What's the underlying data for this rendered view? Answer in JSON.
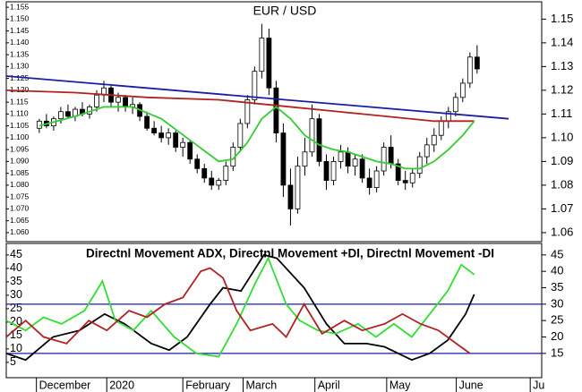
{
  "chart_data": [
    {
      "type": "candlestick",
      "title": "EUR / USD",
      "xlim": [
        -4.6,
        70
      ],
      "ylim": [
        1.0562,
        1.1573
      ],
      "yticks": [
        {
          "value": 1.06,
          "label": "1.060"
        },
        {
          "value": 1.065,
          "label": "1.065"
        },
        {
          "value": 1.07,
          "label": "1.070"
        },
        {
          "value": 1.075,
          "label": "1.075"
        },
        {
          "value": 1.08,
          "label": "1.080"
        },
        {
          "value": 1.085,
          "label": "1.085"
        },
        {
          "value": 1.09,
          "label": "1.090"
        },
        {
          "value": 1.095,
          "label": "1.095"
        },
        {
          "value": 1.1,
          "label": "1.100"
        },
        {
          "value": 1.105,
          "label": "1.105"
        },
        {
          "value": 1.11,
          "label": "1.110"
        },
        {
          "value": 1.115,
          "label": "1.115"
        },
        {
          "value": 1.12,
          "label": "1.120"
        },
        {
          "value": 1.125,
          "label": "1.125"
        },
        {
          "value": 1.13,
          "label": "1.130"
        },
        {
          "value": 1.135,
          "label": "1.135"
        },
        {
          "value": 1.14,
          "label": "1.140"
        },
        {
          "value": 1.145,
          "label": "1.145"
        },
        {
          "value": 1.15,
          "label": "1.150"
        },
        {
          "value": 1.155,
          "label": "1.155"
        }
      ],
      "y2lim": [
        1.0562,
        1.1573
      ],
      "y2ticks": [
        {
          "value": 1.06,
          "label": "1.06"
        },
        1.07,
        1.08,
        1.09,
        {
          "value": 1.1,
          "label": "1.10"
        },
        1.11,
        1.12,
        1.13,
        1.14,
        1.15
      ],
      "up_color": "#ffffff",
      "down_color": "#000000",
      "x": [
        0,
        1,
        2,
        3,
        4,
        5,
        6,
        7,
        8,
        9,
        10,
        11,
        12,
        13,
        14,
        15,
        16,
        17,
        18,
        19,
        20,
        21,
        22,
        23,
        24,
        25,
        26,
        27,
        28,
        29,
        30,
        31,
        32,
        33,
        34,
        35,
        36,
        37,
        38,
        39,
        40,
        41,
        42,
        43,
        44,
        45,
        46,
        47,
        48,
        49,
        50,
        51,
        52,
        53,
        54,
        55,
        56,
        57,
        58,
        59,
        60,
        61
      ],
      "open": [
        1.104,
        1.107,
        1.105,
        1.108,
        1.111,
        1.109,
        1.112,
        1.11,
        1.113,
        1.118,
        1.121,
        1.115,
        1.117,
        1.113,
        1.114,
        1.109,
        1.104,
        1.102,
        1.1,
        1.102,
        1.096,
        1.098,
        1.091,
        1.087,
        1.083,
        1.08,
        1.082,
        1.088,
        1.096,
        1.106,
        1.116,
        1.128,
        1.142,
        1.121,
        1.102,
        1.08,
        1.07,
        1.088,
        1.094,
        1.108,
        1.09,
        1.082,
        1.09,
        1.094,
        1.088,
        1.091,
        1.083,
        1.079,
        1.086,
        1.096,
        1.089,
        1.082,
        1.081,
        1.085,
        1.092,
        1.097,
        1.101,
        1.107,
        1.111,
        1.117,
        1.123,
        1.134
      ],
      "high": [
        1.108,
        1.11,
        1.109,
        1.113,
        1.114,
        1.113,
        1.115,
        1.114,
        1.12,
        1.124,
        1.122,
        1.119,
        1.118,
        1.117,
        1.115,
        1.111,
        1.107,
        1.105,
        1.104,
        1.103,
        1.1,
        1.099,
        1.093,
        1.089,
        1.086,
        1.083,
        1.09,
        1.098,
        1.108,
        1.118,
        1.13,
        1.148,
        1.146,
        1.124,
        1.106,
        1.087,
        1.092,
        1.1,
        1.114,
        1.11,
        1.093,
        1.092,
        1.097,
        1.096,
        1.093,
        1.093,
        1.087,
        1.088,
        1.098,
        1.101,
        1.091,
        1.086,
        1.087,
        1.094,
        1.1,
        1.104,
        1.109,
        1.113,
        1.119,
        1.125,
        1.136,
        1.139
      ],
      "low": [
        1.102,
        1.104,
        1.103,
        1.106,
        1.108,
        1.107,
        1.109,
        1.108,
        1.111,
        1.115,
        1.113,
        1.111,
        1.111,
        1.11,
        1.107,
        1.103,
        1.101,
        1.098,
        1.097,
        1.094,
        1.092,
        1.089,
        1.085,
        1.081,
        1.078,
        1.078,
        1.08,
        1.086,
        1.094,
        1.104,
        1.114,
        1.125,
        1.118,
        1.098,
        1.075,
        1.063,
        1.068,
        1.084,
        1.092,
        1.088,
        1.078,
        1.08,
        1.087,
        1.085,
        1.084,
        1.081,
        1.076,
        1.077,
        1.084,
        1.087,
        1.08,
        1.078,
        1.079,
        1.083,
        1.089,
        1.094,
        1.099,
        1.104,
        1.109,
        1.115,
        1.121,
        1.127
      ],
      "close": [
        1.107,
        1.105,
        1.108,
        1.111,
        1.109,
        1.112,
        1.11,
        1.113,
        1.118,
        1.121,
        1.115,
        1.117,
        1.113,
        1.114,
        1.109,
        1.104,
        1.102,
        1.1,
        1.102,
        1.096,
        1.098,
        1.091,
        1.087,
        1.083,
        1.08,
        1.082,
        1.088,
        1.096,
        1.106,
        1.116,
        1.128,
        1.142,
        1.121,
        1.102,
        1.08,
        1.07,
        1.088,
        1.094,
        1.108,
        1.09,
        1.082,
        1.09,
        1.094,
        1.088,
        1.091,
        1.083,
        1.079,
        1.086,
        1.096,
        1.089,
        1.082,
        1.081,
        1.085,
        1.092,
        1.097,
        1.101,
        1.107,
        1.111,
        1.117,
        1.123,
        1.134,
        1.129
      ],
      "series": [
        {
          "color": "#1c1ca8",
          "x": [
            -4.6,
            65.4
          ],
          "values": [
            1.126,
            1.108
          ]
        },
        {
          "color": "#b22222",
          "x": [
            -4.6,
            5,
            15,
            25,
            35,
            45,
            55,
            60.6
          ],
          "values": [
            1.12,
            1.119,
            1.117,
            1.116,
            1.113,
            1.11,
            1.107,
            1.107
          ]
        },
        {
          "color": "#33cc33",
          "x": [
            0,
            5,
            9,
            13,
            17,
            21,
            25,
            27,
            29,
            31,
            33,
            35,
            37,
            39,
            41,
            43,
            45,
            47,
            49,
            51,
            53,
            55,
            57,
            59,
            60.6
          ],
          "values": [
            1.105,
            1.109,
            1.113,
            1.113,
            1.108,
            1.099,
            1.09,
            1.091,
            1.098,
            1.108,
            1.113,
            1.108,
            1.101,
            1.097,
            1.095,
            1.094,
            1.092,
            1.09,
            1.089,
            1.087,
            1.087,
            1.09,
            1.095,
            1.101,
            1.107
          ]
        }
      ]
    },
    {
      "type": "line",
      "title": "Directnl Movement ADX, Directnl Movement +DI, Directnl Movement -DI",
      "xlim": [
        -4.6,
        70
      ],
      "xticks": [
        {
          "value": -0.4,
          "label": "December"
        },
        {
          "value": 9.4,
          "label": "2020"
        },
        {
          "value": 20,
          "label": "February"
        },
        {
          "value": 28.4,
          "label": "March"
        },
        {
          "value": 38.4,
          "label": "April"
        },
        {
          "value": 48.4,
          "label": "May"
        },
        {
          "value": 58.1,
          "label": "June"
        },
        {
          "value": 68.4,
          "label": "Ju"
        }
      ],
      "ylim": [
        -0.7,
        49.3
      ],
      "yticks": [
        5,
        10,
        15,
        20,
        25,
        30,
        35,
        40,
        45
      ],
      "y2lim": [
        7.6,
        48.5
      ],
      "y2ticks": [
        15,
        20,
        25,
        30,
        35,
        40,
        45
      ],
      "hlines": [
        30,
        15
      ],
      "hline_color": "#1c1ca8",
      "series": [
        {
          "color": "#000000",
          "axis": "y2",
          "x": [
            -4.6,
            -1.9,
            1.9,
            5.6,
            9.1,
            11.9,
            15.6,
            18.1,
            20.6,
            23.8,
            25.6,
            28.1,
            31.3,
            33.1,
            36.9,
            40,
            42.5,
            45.6,
            48.1,
            51.9,
            54.4,
            56.9,
            59.4,
            60.6
          ],
          "values": [
            15,
            13,
            20,
            22,
            27,
            24,
            18,
            16,
            20,
            30,
            35,
            34,
            45,
            44,
            35,
            24,
            18,
            18,
            17,
            13,
            15,
            19,
            27,
            33
          ]
        },
        {
          "color": "#33dd33",
          "axis": "y2",
          "x": [
            -4.6,
            -1.9,
            0.6,
            3.1,
            6.3,
            8.8,
            10.6,
            13.1,
            15.6,
            18.8,
            21.9,
            25,
            27.5,
            30,
            31.9,
            34.4,
            36.3,
            38.8,
            41.3,
            44.4,
            46.9,
            49.4,
            51.9,
            54.4,
            56.9,
            58.8,
            60.6
          ],
          "values": [
            25,
            22,
            26,
            24,
            28,
            37,
            25,
            22,
            28,
            20,
            15,
            14,
            24,
            36,
            44,
            30,
            25,
            22,
            21,
            24,
            20,
            24,
            20,
            27,
            34,
            42,
            39
          ]
        },
        {
          "color": "#b22222",
          "axis": "y2",
          "x": [
            -4.6,
            -1.9,
            0.6,
            3.8,
            6.9,
            9.4,
            12.5,
            15,
            17.5,
            20,
            22.5,
            23.8,
            25.6,
            27.5,
            29.4,
            32.5,
            34.4,
            36.9,
            39.4,
            42.5,
            45,
            48.1,
            50.6,
            53.1,
            55.6,
            58.1,
            60
          ],
          "values": [
            20,
            25,
            20,
            18,
            25,
            22,
            28,
            26,
            30,
            32,
            40,
            41,
            38,
            28,
            22,
            24,
            20,
            30,
            21,
            25,
            22,
            24,
            27,
            24,
            22,
            18,
            15
          ]
        }
      ]
    }
  ]
}
